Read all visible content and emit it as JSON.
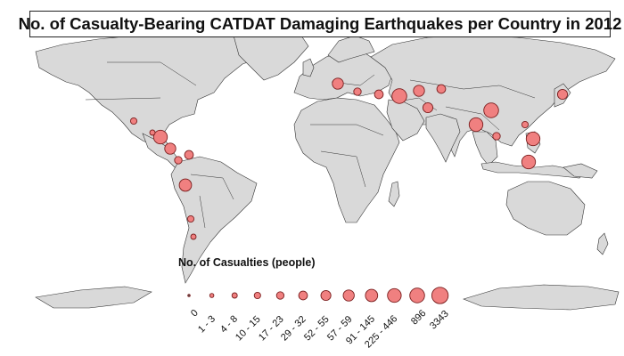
{
  "title": "No. of Casualty-Bearing CATDAT Damaging Earthquakes per Country in 2012",
  "legend": {
    "title": "No. of Casualties (people)",
    "classes": [
      "0",
      "1 - 3",
      "4 - 8",
      "10 - 15",
      "17 - 23",
      "29 - 32",
      "52 - 55",
      "57 - 59",
      "91 - 145",
      "225 - 446",
      "896",
      "3343"
    ]
  },
  "colors": {
    "ocean": "#ffffff",
    "land": "#d9d9d9",
    "border": "#333333",
    "bubble_fill": "#f08080",
    "bubble_stroke": "#7a1f1f"
  },
  "events": [
    {
      "region": "Guatemala",
      "class": 9
    },
    {
      "region": "Costa Rica",
      "class": 7
    },
    {
      "region": "El Salvador",
      "class": 2
    },
    {
      "region": "Mexico",
      "class": 3
    },
    {
      "region": "Peru",
      "class": 8
    },
    {
      "region": "Ecuador",
      "class": 4
    },
    {
      "region": "Colombia",
      "class": 5
    },
    {
      "region": "Chile",
      "class": 3
    },
    {
      "region": "Argentina",
      "class": 2
    },
    {
      "region": "Italy",
      "class": 7
    },
    {
      "region": "Greece",
      "class": 4
    },
    {
      "region": "Turkey",
      "class": 5
    },
    {
      "region": "Iran",
      "class": 10
    },
    {
      "region": "Afghanistan",
      "class": 7
    },
    {
      "region": "Pakistan",
      "class": 6
    },
    {
      "region": "Tajikistan",
      "class": 5
    },
    {
      "region": "China",
      "class": 10
    },
    {
      "region": "Myanmar",
      "class": 9
    },
    {
      "region": "Philippines",
      "class": 9
    },
    {
      "region": "Indonesia",
      "class": 9
    },
    {
      "region": "Japan",
      "class": 6
    },
    {
      "region": "Taiwan",
      "class": 3
    },
    {
      "region": "Vietnam",
      "class": 4
    }
  ]
}
